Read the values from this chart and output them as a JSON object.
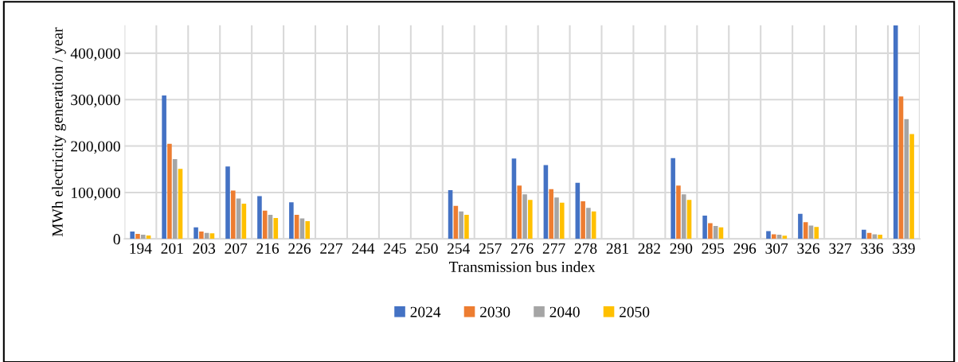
{
  "chart_data": {
    "type": "bar",
    "xlabel": "Transmission bus index",
    "ylabel": "MWh electricity generation / year",
    "categories": [
      "194",
      "201",
      "203",
      "207",
      "216",
      "226",
      "227",
      "244",
      "245",
      "250",
      "254",
      "257",
      "276",
      "277",
      "278",
      "281",
      "282",
      "290",
      "295",
      "296",
      "307",
      "326",
      "327",
      "336",
      "339"
    ],
    "series": [
      {
        "name": "2024",
        "color": "#4472c4",
        "values": [
          16000,
          309000,
          25000,
          156000,
          92000,
          79000,
          0,
          0,
          0,
          0,
          105000,
          0,
          173000,
          159000,
          121000,
          0,
          0,
          174000,
          50000,
          0,
          17000,
          54000,
          0,
          20000,
          460000
        ]
      },
      {
        "name": "2030",
        "color": "#ed7d31",
        "values": [
          11000,
          205000,
          16000,
          104000,
          61000,
          52000,
          0,
          0,
          0,
          0,
          71000,
          0,
          115000,
          107000,
          81000,
          0,
          0,
          115000,
          34000,
          0,
          10000,
          36000,
          0,
          13000,
          307000
        ]
      },
      {
        "name": "2040",
        "color": "#a5a5a5",
        "values": [
          9000,
          172000,
          13000,
          87000,
          52000,
          44000,
          0,
          0,
          0,
          0,
          59000,
          0,
          96000,
          89000,
          67000,
          0,
          0,
          96000,
          28000,
          0,
          9000,
          29000,
          0,
          10000,
          258000
        ]
      },
      {
        "name": "2050",
        "color": "#ffc000",
        "values": [
          7500,
          151000,
          12000,
          76000,
          45000,
          38000,
          0,
          0,
          0,
          0,
          52000,
          0,
          84000,
          78000,
          59000,
          0,
          0,
          84000,
          25000,
          0,
          7000,
          26000,
          0,
          9000,
          226000
        ]
      }
    ],
    "ylim": [
      0,
      460000
    ],
    "yticks": [
      {
        "value": 0,
        "label": "0"
      },
      {
        "value": 100000,
        "label": "100,000"
      },
      {
        "value": 200000,
        "label": "200,000"
      },
      {
        "value": 300000,
        "label": "300,000"
      },
      {
        "value": 400000,
        "label": "400,000"
      }
    ],
    "grid": true,
    "legend": "bottom"
  }
}
